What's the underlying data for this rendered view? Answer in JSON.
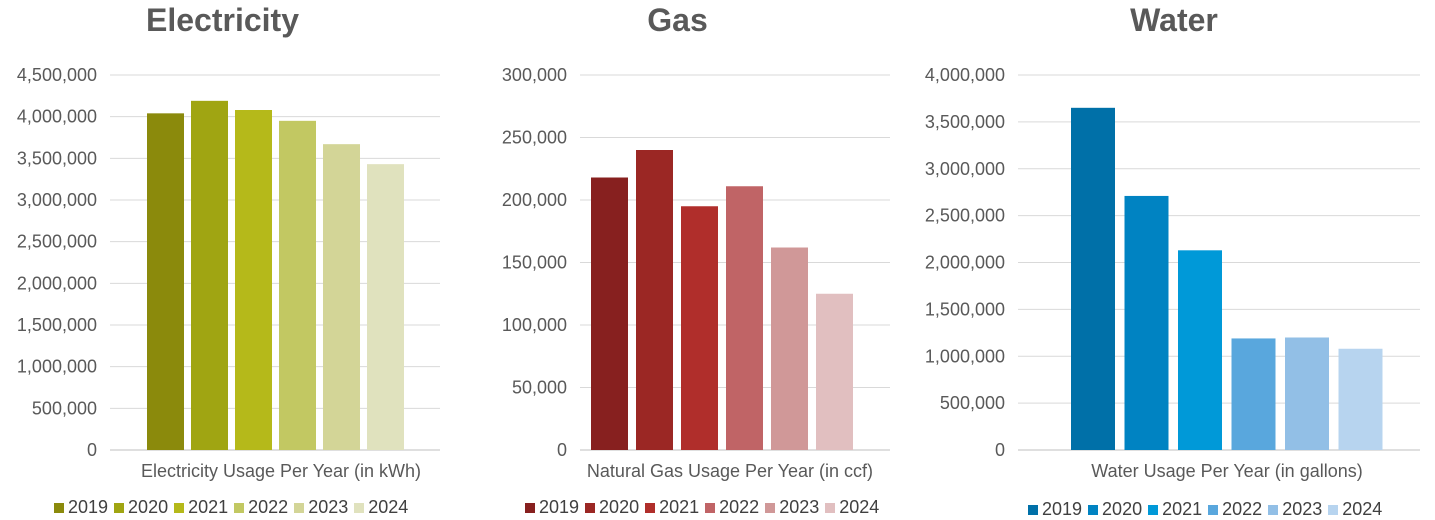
{
  "chart_data": [
    {
      "type": "bar",
      "title": "Electricity",
      "xlabel": "Electricity Usage Per Year (in kWh)",
      "ylabel": "",
      "ylim": [
        0,
        4500000
      ],
      "yticks": [
        "0",
        "500,000",
        "1,000,000",
        "1,500,000",
        "2,000,000",
        "2,500,000",
        "3,000,000",
        "3,500,000",
        "4,000,000",
        "4,500,000"
      ],
      "grid": true,
      "legend_position": "bottom",
      "categories": [
        "Electricity Usage Per Year (in kWh)"
      ],
      "series": [
        {
          "name": "2019",
          "values": [
            4040000
          ],
          "color": "#8B8A0C"
        },
        {
          "name": "2020",
          "values": [
            4190000
          ],
          "color": "#A0A512"
        },
        {
          "name": "2021",
          "values": [
            4080000
          ],
          "color": "#B5B91A"
        },
        {
          "name": "2022",
          "values": [
            3950000
          ],
          "color": "#C2C862"
        },
        {
          "name": "2023",
          "values": [
            3670000
          ],
          "color": "#D3D597"
        },
        {
          "name": "2024",
          "values": [
            3430000
          ],
          "color": "#E0E2BE"
        }
      ]
    },
    {
      "type": "bar",
      "title": "Gas",
      "xlabel": "Natural Gas Usage Per Year (in ccf)",
      "ylabel": "",
      "ylim": [
        0,
        300000
      ],
      "yticks": [
        "0",
        "50,000",
        "100,000",
        "150,000",
        "200,000",
        "250,000",
        "300,000"
      ],
      "grid": true,
      "legend_position": "bottom",
      "categories": [
        "Natural Gas Usage Per Year (in ccf)"
      ],
      "series": [
        {
          "name": "2019",
          "values": [
            218000
          ],
          "color": "#87201F"
        },
        {
          "name": "2020",
          "values": [
            240000
          ],
          "color": "#9B2724"
        },
        {
          "name": "2021",
          "values": [
            195000
          ],
          "color": "#B02E2B"
        },
        {
          "name": "2022",
          "values": [
            211000
          ],
          "color": "#C06466"
        },
        {
          "name": "2023",
          "values": [
            162000
          ],
          "color": "#D09898"
        },
        {
          "name": "2024",
          "values": [
            125000
          ],
          "color": "#E1BFC0"
        }
      ]
    },
    {
      "type": "bar",
      "title": "Water",
      "xlabel": "Water Usage Per Year (in gallons)",
      "ylabel": "",
      "ylim": [
        0,
        4000000
      ],
      "yticks": [
        "0",
        "500,000",
        "1,000,000",
        "1,500,000",
        "2,000,000",
        "2,500,000",
        "3,000,000",
        "3,500,000",
        "4,000,000"
      ],
      "grid": true,
      "legend_position": "bottom",
      "categories": [
        "Water Usage Per Year (in gallons)"
      ],
      "series": [
        {
          "name": "2019",
          "values": [
            3650000
          ],
          "color": "#0070A8"
        },
        {
          "name": "2020",
          "values": [
            2710000
          ],
          "color": "#0083C2"
        },
        {
          "name": "2021",
          "values": [
            2130000
          ],
          "color": "#0099D8"
        },
        {
          "name": "2022",
          "values": [
            1190000
          ],
          "color": "#59A7DD"
        },
        {
          "name": "2023",
          "values": [
            1200000
          ],
          "color": "#92BFE6"
        },
        {
          "name": "2024",
          "values": [
            1080000
          ],
          "color": "#B7D4EF"
        }
      ]
    }
  ]
}
